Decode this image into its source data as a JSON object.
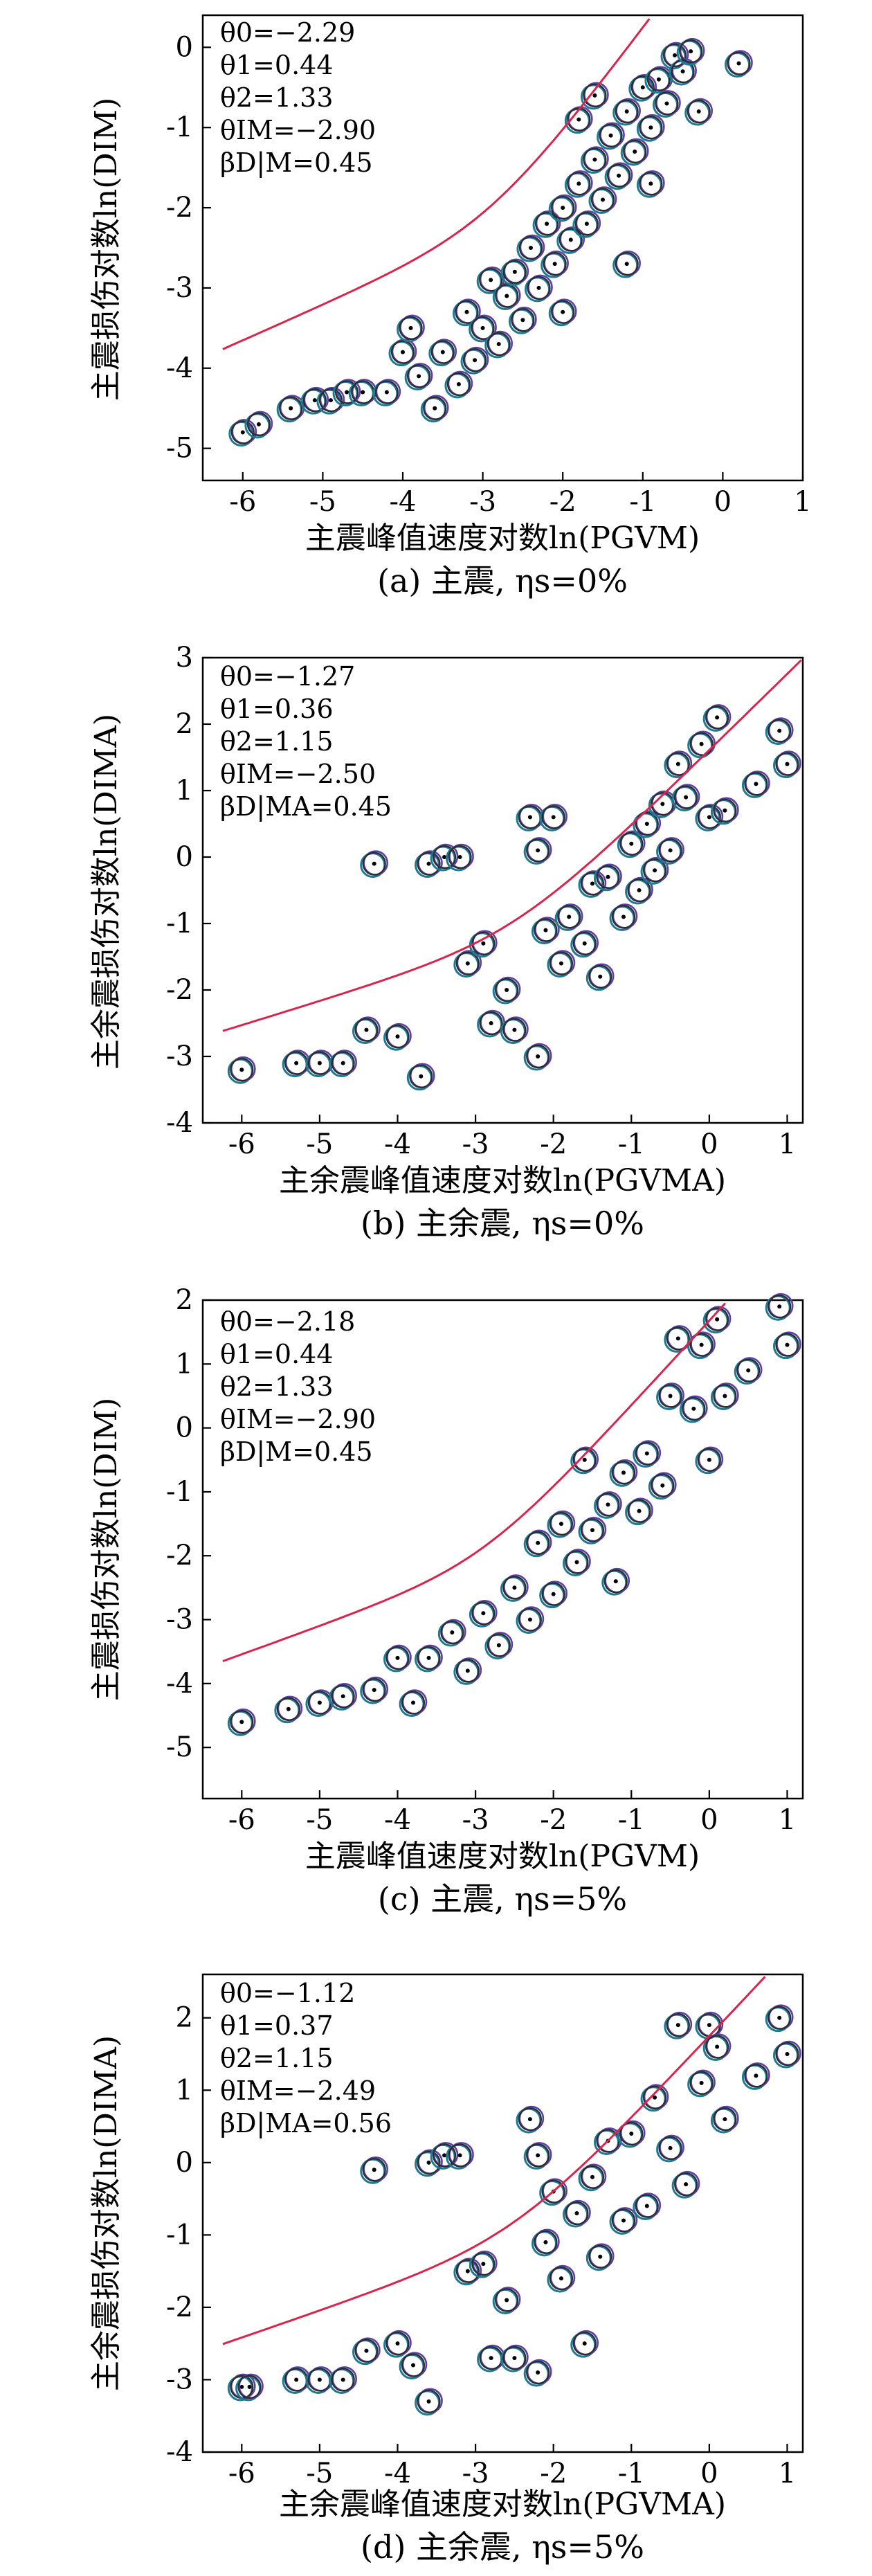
{
  "chart_data": [
    {
      "type": "scatter",
      "caption": "(a) 主震, ηs=0%",
      "xlabel": "主震峰值速度对数ln(PGVM)",
      "ylabel": "主震损伤对数ln(DIM)",
      "xlim": [
        -6.5,
        1
      ],
      "ylim": [
        -5.4,
        0.4
      ],
      "xticks": [
        "-6",
        "-5",
        "-4",
        "-3",
        "-2",
        "-1",
        "0",
        "1"
      ],
      "yticks": [
        "-5",
        "-4",
        "-3",
        "-2",
        "-1",
        "0"
      ],
      "params": [
        "θ0=−2.29",
        "θ1=0.44",
        "θ2=1.33",
        "θIM=−2.90",
        "βD|M=0.45"
      ],
      "fit": {
        "theta0": -2.29,
        "theta1": 0.44,
        "theta2": 1.33,
        "thetaIM": -2.9,
        "beta": 0.45
      },
      "points": [
        [
          -6,
          -4.8
        ],
        [
          -5.8,
          -4.7
        ],
        [
          -5.4,
          -4.5
        ],
        [
          -5.1,
          -4.4
        ],
        [
          -4.9,
          -4.4
        ],
        [
          -4.7,
          -4.3
        ],
        [
          -4.5,
          -4.3
        ],
        [
          -4.2,
          -4.3
        ],
        [
          -4,
          -3.8
        ],
        [
          -3.9,
          -3.5
        ],
        [
          -3.8,
          -4.1
        ],
        [
          -3.6,
          -4.5
        ],
        [
          -3.5,
          -3.8
        ],
        [
          -3.3,
          -4.2
        ],
        [
          -3.2,
          -3.3
        ],
        [
          -3.1,
          -3.9
        ],
        [
          -3,
          -3.5
        ],
        [
          -2.9,
          -2.9
        ],
        [
          -2.8,
          -3.7
        ],
        [
          -2.7,
          -3.1
        ],
        [
          -2.6,
          -2.8
        ],
        [
          -2.5,
          -3.4
        ],
        [
          -2.4,
          -2.5
        ],
        [
          -2.3,
          -3
        ],
        [
          -2.2,
          -2.2
        ],
        [
          -2.1,
          -2.7
        ],
        [
          -2,
          -2
        ],
        [
          -1.9,
          -2.4
        ],
        [
          -1.8,
          -1.7
        ],
        [
          -1.7,
          -2.2
        ],
        [
          -1.6,
          -1.4
        ],
        [
          -1.5,
          -1.9
        ],
        [
          -1.4,
          -1.1
        ],
        [
          -1.3,
          -1.6
        ],
        [
          -1.2,
          -0.8
        ],
        [
          -1.1,
          -1.3
        ],
        [
          -1,
          -0.5
        ],
        [
          -0.9,
          -1
        ],
        [
          -0.8,
          -0.4
        ],
        [
          -0.7,
          -0.7
        ],
        [
          -0.6,
          -0.1
        ],
        [
          -0.5,
          -0.3
        ],
        [
          -0.4,
          -0.05
        ],
        [
          -0.3,
          -0.8
        ],
        [
          0.2,
          -0.2
        ],
        [
          -1.8,
          -0.9
        ],
        [
          -1.6,
          -0.6
        ],
        [
          -0.9,
          -1.7
        ],
        [
          -1.2,
          -2.7
        ],
        [
          -2,
          -3.3
        ]
      ]
    },
    {
      "type": "scatter",
      "caption": "(b) 主余震, ηs=0%",
      "xlabel": "主余震峰值速度对数ln(PGVMA)",
      "ylabel": "主余震损伤对数ln(DIMA)",
      "xlim": [
        -6.5,
        1.2
      ],
      "ylim": [
        -4,
        3
      ],
      "xticks": [
        "-6",
        "-5",
        "-4",
        "-3",
        "-2",
        "-1",
        "0",
        "1"
      ],
      "yticks": [
        "-4",
        "-3",
        "-2",
        "-1",
        "0",
        "1",
        "2",
        "3"
      ],
      "params": [
        "θ0=−1.27",
        "θ1=0.36",
        "θ2=1.15",
        "θIM=−2.50",
        "βD|MA=0.45"
      ],
      "fit": {
        "theta0": -1.27,
        "theta1": 0.36,
        "theta2": 1.15,
        "thetaIM": -2.5,
        "beta": 0.45
      },
      "points": [
        [
          -6,
          -3.2
        ],
        [
          -5.3,
          -3.1
        ],
        [
          -5,
          -3.1
        ],
        [
          -4.7,
          -3.1
        ],
        [
          -4.4,
          -2.6
        ],
        [
          -4.3,
          -0.1
        ],
        [
          -4,
          -2.7
        ],
        [
          -3.6,
          -0.1
        ],
        [
          -3.4,
          0
        ],
        [
          -3.2,
          0
        ],
        [
          -3.1,
          -1.6
        ],
        [
          -3.7,
          -3.3
        ],
        [
          -2.9,
          -1.3
        ],
        [
          -2.8,
          -2.5
        ],
        [
          -2.6,
          -2
        ],
        [
          -2.5,
          -2.6
        ],
        [
          -2.3,
          0.6
        ],
        [
          -2.2,
          0.1
        ],
        [
          -2,
          0.6
        ],
        [
          -2.2,
          -3
        ],
        [
          -2.1,
          -1.1
        ],
        [
          -1.9,
          -1.6
        ],
        [
          -1.8,
          -0.9
        ],
        [
          -1.6,
          -1.3
        ],
        [
          -1.5,
          -0.4
        ],
        [
          -1.4,
          -1.8
        ],
        [
          -1.3,
          -0.3
        ],
        [
          -1.1,
          -0.9
        ],
        [
          -1,
          0.2
        ],
        [
          -0.9,
          -0.5
        ],
        [
          -0.8,
          0.5
        ],
        [
          -0.7,
          -0.2
        ],
        [
          -0.6,
          0.8
        ],
        [
          -0.5,
          0.1
        ],
        [
          -0.4,
          1.4
        ],
        [
          -0.3,
          0.9
        ],
        [
          -0.1,
          1.7
        ],
        [
          0,
          0.6
        ],
        [
          0.1,
          2.1
        ],
        [
          0.2,
          0.7
        ],
        [
          0.6,
          1.1
        ],
        [
          0.9,
          1.9
        ],
        [
          1,
          1.4
        ]
      ]
    },
    {
      "type": "scatter",
      "caption": "(c) 主震, ηs=5%",
      "xlabel": "主震峰值速度对数ln(PGVM)",
      "ylabel": "主震损伤对数ln(DIM)",
      "xlim": [
        -6.5,
        1.2
      ],
      "ylim": [
        -5.8,
        2
      ],
      "xticks": [
        "-6",
        "-5",
        "-4",
        "-3",
        "-2",
        "-1",
        "0",
        "1"
      ],
      "yticks": [
        "-5",
        "-4",
        "-3",
        "-2",
        "-1",
        "0",
        "1",
        "2"
      ],
      "params": [
        "θ0=−2.18",
        "θ1=0.44",
        "θ2=1.33",
        "θIM=−2.90",
        "βD|M=0.45"
      ],
      "fit": {
        "theta0": -2.18,
        "theta1": 0.44,
        "theta2": 1.33,
        "thetaIM": -2.9,
        "beta": 0.45
      },
      "points": [
        [
          -6,
          -4.6
        ],
        [
          -5.4,
          -4.4
        ],
        [
          -5,
          -4.3
        ],
        [
          -4.7,
          -4.2
        ],
        [
          -4.3,
          -4.1
        ],
        [
          -4,
          -3.6
        ],
        [
          -3.8,
          -4.3
        ],
        [
          -3.6,
          -3.6
        ],
        [
          -3.3,
          -3.2
        ],
        [
          -3.1,
          -3.8
        ],
        [
          -2.9,
          -2.9
        ],
        [
          -2.7,
          -3.4
        ],
        [
          -2.5,
          -2.5
        ],
        [
          -2.3,
          -3
        ],
        [
          -2.2,
          -1.8
        ],
        [
          -2,
          -2.6
        ],
        [
          -1.9,
          -1.5
        ],
        [
          -1.7,
          -2.1
        ],
        [
          -1.6,
          -0.5
        ],
        [
          -1.5,
          -1.6
        ],
        [
          -1.3,
          -1.2
        ],
        [
          -1.2,
          -2.4
        ],
        [
          -1.1,
          -0.7
        ],
        [
          -0.9,
          -1.3
        ],
        [
          -0.8,
          -0.4
        ],
        [
          -0.6,
          -0.9
        ],
        [
          -0.5,
          0.5
        ],
        [
          -0.4,
          1.4
        ],
        [
          -0.2,
          0.3
        ],
        [
          -0.1,
          1.3
        ],
        [
          0,
          -0.5
        ],
        [
          0.1,
          1.7
        ],
        [
          0.2,
          0.5
        ],
        [
          0.5,
          0.9
        ],
        [
          0.9,
          1.9
        ],
        [
          1,
          1.3
        ]
      ]
    },
    {
      "type": "scatter",
      "caption": "(d) 主余震, ηs=5%",
      "xlabel": "主余震峰值速度对数ln(PGVMA)",
      "ylabel": "主余震损伤对数ln(DIMA)",
      "xlim": [
        -6.5,
        1.2
      ],
      "ylim": [
        -4,
        2.6
      ],
      "xticks": [
        "-6",
        "-5",
        "-4",
        "-3",
        "-2",
        "-1",
        "0",
        "1"
      ],
      "yticks": [
        "-4",
        "-3",
        "-2",
        "-1",
        "0",
        "1",
        "2"
      ],
      "params": [
        "θ0=−1.12",
        "θ1=0.37",
        "θ2=1.15",
        "θIM=−2.49",
        "βD|MA=0.56"
      ],
      "fit": {
        "theta0": -1.12,
        "theta1": 0.37,
        "theta2": 1.15,
        "thetaIM": -2.49,
        "beta": 0.56
      },
      "points": [
        [
          -6,
          -3.1
        ],
        [
          -5.9,
          -3.1
        ],
        [
          -5.3,
          -3
        ],
        [
          -5,
          -3
        ],
        [
          -4.7,
          -3
        ],
        [
          -4.4,
          -2.6
        ],
        [
          -4.3,
          -0.1
        ],
        [
          -4,
          -2.5
        ],
        [
          -3.8,
          -2.8
        ],
        [
          -3.6,
          0
        ],
        [
          -3.6,
          -3.3
        ],
        [
          -3.4,
          0.1
        ],
        [
          -3.2,
          0.1
        ],
        [
          -3.1,
          -1.5
        ],
        [
          -2.9,
          -1.4
        ],
        [
          -2.8,
          -2.7
        ],
        [
          -2.6,
          -1.9
        ],
        [
          -2.5,
          -2.7
        ],
        [
          -2.3,
          0.6
        ],
        [
          -2.2,
          0.1
        ],
        [
          -2.2,
          -2.9
        ],
        [
          -2.1,
          -1.1
        ],
        [
          -2,
          -0.4
        ],
        [
          -1.9,
          -1.6
        ],
        [
          -1.7,
          -0.7
        ],
        [
          -1.6,
          -2.5
        ],
        [
          -1.5,
          -0.2
        ],
        [
          -1.4,
          -1.3
        ],
        [
          -1.3,
          0.3
        ],
        [
          -1.1,
          -0.8
        ],
        [
          -1,
          0.4
        ],
        [
          -0.8,
          -0.6
        ],
        [
          -0.7,
          0.9
        ],
        [
          -0.5,
          0.2
        ],
        [
          -0.4,
          1.9
        ],
        [
          -0.3,
          -0.3
        ],
        [
          -0.1,
          1.1
        ],
        [
          0,
          1.9
        ],
        [
          0.1,
          1.6
        ],
        [
          0.2,
          0.6
        ],
        [
          0.6,
          1.2
        ],
        [
          0.9,
          2
        ],
        [
          1,
          1.5
        ]
      ]
    }
  ]
}
